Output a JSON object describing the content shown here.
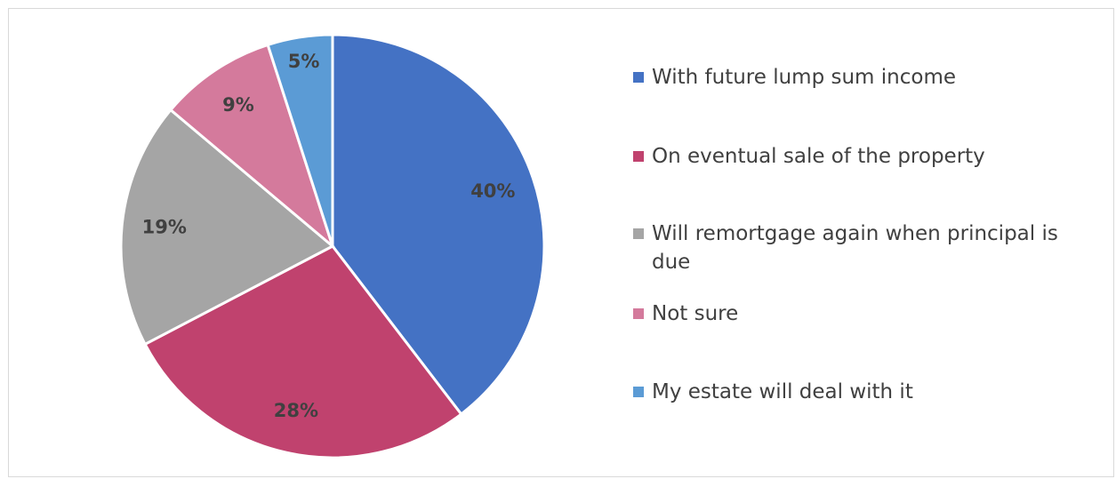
{
  "chart_data": {
    "type": "pie",
    "categories": [
      "With future lump sum income",
      "On eventual sale of the property",
      "Will remortgage again when principal is due",
      "Not sure",
      "My estate will deal with it"
    ],
    "values": [
      40,
      28,
      19,
      9,
      5
    ],
    "value_labels": [
      "40%",
      "28%",
      "19%",
      "9%",
      "5%"
    ],
    "colors": [
      "#4472c4",
      "#c0426e",
      "#a5a5a5",
      "#d47a9c",
      "#5b9bd5"
    ],
    "legend": "right"
  }
}
